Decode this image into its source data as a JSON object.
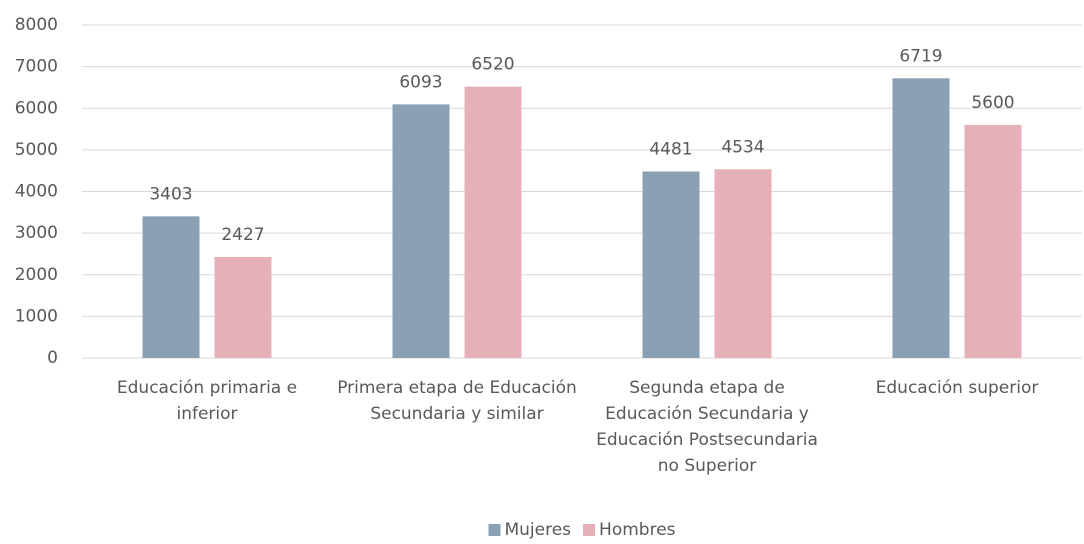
{
  "chart_data": {
    "type": "bar",
    "categories": [
      "Educación primaria e inferior",
      "Primera etapa de Educación Secundaria y similar",
      "Segunda etapa de Educación Secundaria y Educación Postsecundaria no Superior",
      "Educación superior"
    ],
    "series": [
      {
        "name": "Mujeres",
        "color": "#8aa0b4",
        "values": [
          3403,
          6093,
          4481,
          6719
        ]
      },
      {
        "name": "Hombres",
        "color": "#e6b0b8",
        "values": [
          2427,
          6520,
          4534,
          5600
        ]
      }
    ],
    "ylim": [
      0,
      8000
    ],
    "yticks": [
      0,
      1000,
      2000,
      3000,
      4000,
      5000,
      6000,
      7000,
      8000
    ],
    "grid": true,
    "legend": "bottom"
  }
}
